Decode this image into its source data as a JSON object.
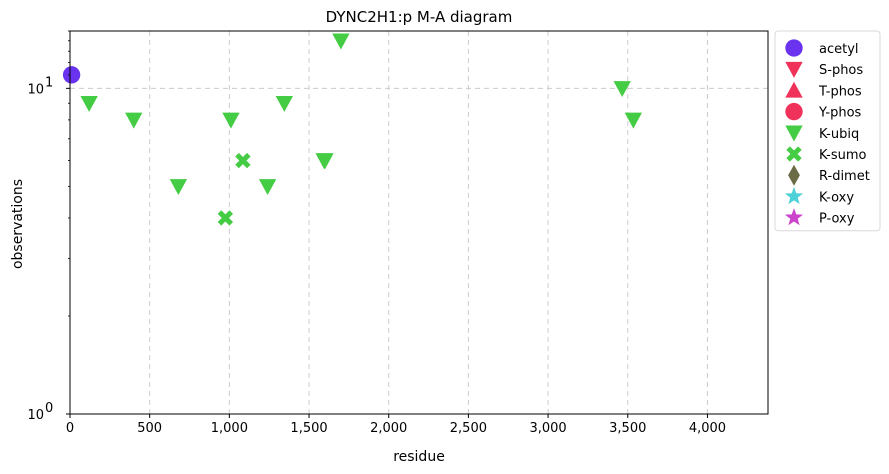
{
  "chart_data": {
    "type": "scatter",
    "title": "DYNC2H1:p M-A diagram",
    "xlabel": "residue",
    "ylabel": "observations",
    "xlim": [
      0,
      4380
    ],
    "ylim": [
      1,
      15
    ],
    "yscale": "log",
    "grid": true,
    "legend_position": "outside-top-right",
    "x_ticks": [
      {
        "value": 0,
        "label": "0"
      },
      {
        "value": 500,
        "label": "500"
      },
      {
        "value": 1000,
        "label": "1,000"
      },
      {
        "value": 1500,
        "label": "1,500"
      },
      {
        "value": 2000,
        "label": "2,000"
      },
      {
        "value": 2500,
        "label": "2,500"
      },
      {
        "value": 3000,
        "label": "3,000"
      },
      {
        "value": 3500,
        "label": "3,500"
      },
      {
        "value": 4000,
        "label": "4,000"
      }
    ],
    "y_ticks": [
      {
        "value": 1,
        "base": "10",
        "exp": "0"
      },
      {
        "value": 10,
        "base": "10",
        "exp": "1"
      }
    ],
    "series": [
      {
        "name": "acetyl",
        "marker": "circle",
        "color": "#6a33f0",
        "points": [
          {
            "x": 10,
            "y": 11
          }
        ]
      },
      {
        "name": "S-phos",
        "marker": "triangle-down",
        "color": "#f0325a",
        "points": []
      },
      {
        "name": "T-phos",
        "marker": "triangle-up",
        "color": "#f0325a",
        "points": []
      },
      {
        "name": "Y-phos",
        "marker": "circle",
        "color": "#f0325a",
        "points": []
      },
      {
        "name": "K-ubiq",
        "marker": "triangle-down",
        "color": "#44cc44",
        "points": [
          {
            "x": 120,
            "y": 9
          },
          {
            "x": 400,
            "y": 8
          },
          {
            "x": 680,
            "y": 5
          },
          {
            "x": 1010,
            "y": 8
          },
          {
            "x": 1240,
            "y": 5
          },
          {
            "x": 1345,
            "y": 9
          },
          {
            "x": 1595,
            "y": 6
          },
          {
            "x": 1600,
            "y": 6
          },
          {
            "x": 1700,
            "y": 14
          },
          {
            "x": 3465,
            "y": 10
          },
          {
            "x": 3535,
            "y": 8
          }
        ]
      },
      {
        "name": "K-sumo",
        "marker": "x",
        "color": "#44cc44",
        "points": [
          {
            "x": 975,
            "y": 4
          },
          {
            "x": 1085,
            "y": 6
          }
        ]
      },
      {
        "name": "R-dimet",
        "marker": "diamond",
        "color": "#6b6b45",
        "points": []
      },
      {
        "name": "K-oxy",
        "marker": "star",
        "color": "#4dd0d8",
        "points": []
      },
      {
        "name": "P-oxy",
        "marker": "star",
        "color": "#cc44cc",
        "points": []
      }
    ]
  }
}
